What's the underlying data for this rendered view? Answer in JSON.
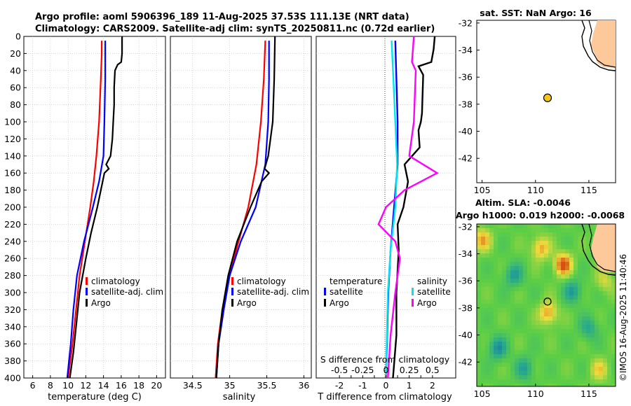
{
  "title": {
    "line1": "Argo profile: aoml 5906396_189 11-Aug-2025 37.53S 111.13E (NRT data)",
    "line2": "Climatology: CARS2009. Satellite-adj clim: synTS_20250811.nc (0.72d earlier)"
  },
  "watermark": "©IMOS 16-Aug-2025 11:40:46",
  "colors": {
    "climatology": "#ff0000",
    "satellite": "#0000ff",
    "argo": "#000000",
    "sal_sat": "#00e5ee",
    "sal_argo": "#ff00ff",
    "land": "#fdc99a",
    "marker": "#f5c518"
  },
  "chart_data": [
    {
      "type": "line",
      "id": "temperature",
      "xlabel": "temperature (deg C)",
      "ylabel": "",
      "xlim": [
        5,
        21
      ],
      "ylim": [
        0,
        400
      ],
      "xticks": [
        6,
        8,
        10,
        12,
        14,
        16,
        18,
        20
      ],
      "yticks": [
        0,
        20,
        40,
        60,
        80,
        100,
        120,
        140,
        160,
        180,
        200,
        220,
        240,
        260,
        280,
        300,
        320,
        340,
        360,
        380,
        400
      ],
      "legend": [
        "climatology",
        "satellite-adj. clim",
        "Argo"
      ],
      "series": [
        {
          "name": "climatology",
          "depth": [
            5,
            20,
            50,
            100,
            140,
            170,
            200,
            240,
            280,
            320,
            360,
            400
          ],
          "values": [
            13.8,
            13.8,
            13.7,
            13.5,
            13.2,
            12.9,
            12.5,
            11.9,
            11.3,
            10.9,
            10.5,
            10.0
          ]
        },
        {
          "name": "satellite-adj. clim",
          "depth": [
            5,
            20,
            50,
            100,
            140,
            170,
            200,
            240,
            280,
            320,
            360,
            400
          ],
          "values": [
            14.2,
            14.2,
            14.2,
            14.1,
            14.0,
            13.5,
            12.8,
            11.8,
            11.0,
            10.6,
            10.3,
            9.9
          ]
        },
        {
          "name": "Argo",
          "depth": [
            0,
            20,
            30,
            33,
            40,
            60,
            80,
            100,
            120,
            140,
            150,
            155,
            160,
            170,
            200,
            230,
            260,
            300,
            340,
            370,
            400
          ],
          "values": [
            16.1,
            16.1,
            16.0,
            15.6,
            15.3,
            15.2,
            15.2,
            15.1,
            15.0,
            14.8,
            14.3,
            14.6,
            14.1,
            13.9,
            13.3,
            12.6,
            12.0,
            11.3,
            10.9,
            10.6,
            10.2
          ]
        }
      ]
    },
    {
      "type": "line",
      "id": "salinity",
      "xlabel": "salinity",
      "ylabel": "",
      "xlim": [
        34.2,
        36.1
      ],
      "ylim": [
        0,
        400
      ],
      "xticks": [
        34.5,
        35,
        35.5,
        36
      ],
      "legend": [
        "climatology",
        "satellite-adj. clim",
        "Argo"
      ],
      "series": [
        {
          "name": "climatology",
          "depth": [
            5,
            50,
            100,
            150,
            200,
            240,
            280,
            320,
            360,
            400
          ],
          "values": [
            35.48,
            35.46,
            35.42,
            35.36,
            35.25,
            35.12,
            35.0,
            34.9,
            34.84,
            34.81
          ]
        },
        {
          "name": "satellite-adj. clim",
          "depth": [
            5,
            50,
            100,
            150,
            200,
            240,
            280,
            320,
            360,
            400
          ],
          "values": [
            35.53,
            35.53,
            35.52,
            35.48,
            35.35,
            35.15,
            35.0,
            34.92,
            34.85,
            34.82
          ]
        },
        {
          "name": "Argo",
          "depth": [
            0,
            50,
            100,
            140,
            155,
            160,
            170,
            200,
            240,
            280,
            320,
            360,
            400
          ],
          "values": [
            35.61,
            35.6,
            35.58,
            35.52,
            35.47,
            35.53,
            35.43,
            35.28,
            35.1,
            34.98,
            34.9,
            34.85,
            34.82
          ]
        }
      ]
    },
    {
      "type": "line",
      "id": "difference",
      "xlabel": "T difference from climatology",
      "xlabel2": "S difference from climatology",
      "xlim": [
        -3,
        3
      ],
      "ylim": [
        0,
        400
      ],
      "xticks": [
        -2,
        -1.5,
        -1,
        -0.5,
        0,
        0.5,
        1,
        1.5,
        2
      ],
      "xticks2": [
        "-0.5",
        "-0.25",
        "0",
        "0.25",
        "0.5"
      ],
      "legend_t": [
        "temperature",
        "satellite",
        "Argo"
      ],
      "legend_s": [
        "salinity",
        "satellite",
        "Argo"
      ],
      "series": [
        {
          "name": "T satellite",
          "depth": [
            5,
            50,
            100,
            150,
            200,
            250,
            300,
            350,
            400
          ],
          "values": [
            0.4,
            0.45,
            0.5,
            0.5,
            0.35,
            0.2,
            0.1,
            0.05,
            0.0
          ]
        },
        {
          "name": "T Argo",
          "depth": [
            0,
            15,
            30,
            35,
            45,
            90,
            100,
            110,
            130,
            150,
            170,
            200,
            220,
            250,
            300,
            350,
            400
          ],
          "values": [
            2.1,
            2.05,
            1.95,
            1.4,
            1.6,
            1.55,
            1.5,
            1.4,
            1.45,
            0.8,
            0.95,
            0.75,
            0.5,
            0.55,
            0.45,
            0.45,
            0.3
          ]
        },
        {
          "name": "S satellite",
          "depth": [
            5,
            50,
            100,
            150,
            200,
            250,
            300,
            350,
            400
          ],
          "values": [
            0.06,
            0.08,
            0.1,
            0.12,
            0.1,
            0.05,
            0.02,
            0.01,
            0.0
          ]
        },
        {
          "name": "S Argo",
          "depth": [
            0,
            30,
            40,
            100,
            140,
            160,
            180,
            200,
            220,
            240,
            260,
            300,
            350,
            400
          ],
          "values": [
            0.3,
            0.28,
            0.32,
            0.3,
            0.25,
            0.55,
            0.2,
            0.0,
            -0.08,
            0.1,
            0.15,
            0.1,
            0.05,
            0.02
          ]
        }
      ]
    },
    {
      "type": "scatter",
      "id": "sst-map",
      "title": "sat. SST: NaN Argo: 16",
      "xlim": [
        104.5,
        117.5
      ],
      "ylim": [
        -43.8,
        -31.8
      ],
      "xticks": [
        105,
        110,
        115
      ],
      "yticks": [
        -32,
        -34,
        -36,
        -38,
        -40,
        -42
      ],
      "points": [
        {
          "lon": 111.13,
          "lat": -37.53
        }
      ]
    },
    {
      "type": "heatmap",
      "id": "sla-map",
      "title1": "Altim. SLA: -0.0046",
      "title2": "Argo h1000: 0.019 h2000: -0.0068",
      "xlim": [
        104.5,
        117.5
      ],
      "ylim": [
        -43.8,
        -31.8
      ],
      "xticks": [
        105,
        110,
        115
      ],
      "yticks": [
        -32,
        -34,
        -36,
        -38,
        -40,
        -42
      ],
      "points": [
        {
          "lon": 111.13,
          "lat": -37.53
        }
      ],
      "hotspots": [
        {
          "lon": 112.6,
          "lat": -34.8,
          "v": 1.0
        },
        {
          "lon": 110.5,
          "lat": -33.6,
          "v": 0.7
        },
        {
          "lon": 111.2,
          "lat": -38.4,
          "v": 0.75
        },
        {
          "lon": 105.0,
          "lat": -33.0,
          "v": 0.7
        },
        {
          "lon": 116.0,
          "lat": -42.6,
          "v": 0.5
        },
        {
          "lon": 108.0,
          "lat": -35.6,
          "v": -0.6
        },
        {
          "lon": 106.5,
          "lat": -41.0,
          "v": -0.7
        },
        {
          "lon": 113.5,
          "lat": -36.8,
          "v": -0.6
        },
        {
          "lon": 115.0,
          "lat": -39.5,
          "v": -0.5
        },
        {
          "lon": 109.0,
          "lat": -42.5,
          "v": -0.55
        },
        {
          "lon": 116.5,
          "lat": -36.0,
          "v": 0.4
        }
      ]
    }
  ]
}
